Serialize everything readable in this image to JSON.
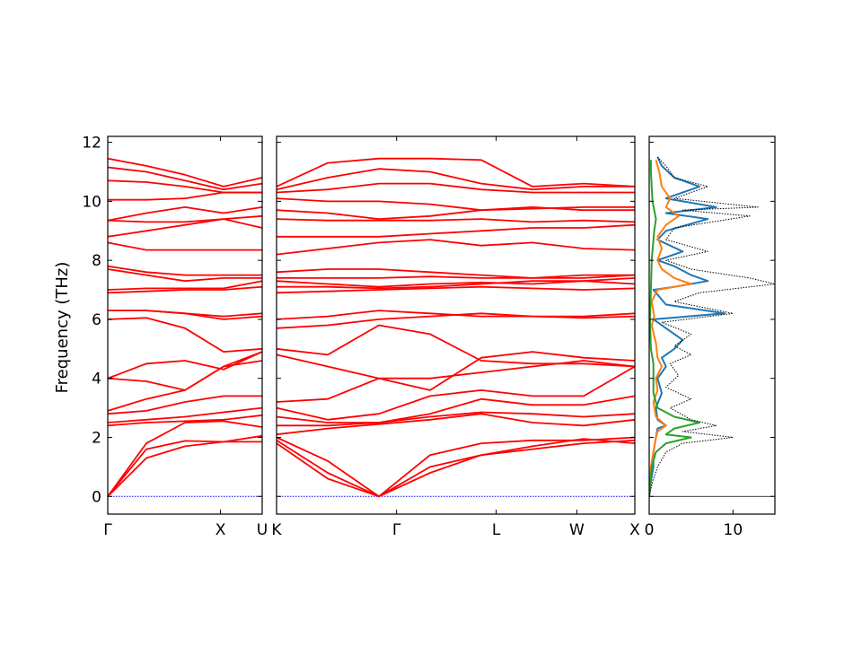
{
  "chart_data": {
    "type": "line",
    "ylabel": "Frequency (THz)",
    "ylim": [
      -0.6,
      12.2
    ],
    "yticks": [
      "0",
      "2",
      "4",
      "6",
      "8",
      "10",
      "12"
    ],
    "ytick_values": [
      0,
      2,
      4,
      6,
      8,
      10,
      12
    ],
    "band_color": "#ff0000",
    "zero_line_color": "#0000ff",
    "panels": [
      {
        "name": "Γ–X–U",
        "tick_labels": [
          "Γ",
          "X",
          "U"
        ],
        "tick_positions": [
          0,
          0.73,
          1.0
        ],
        "bands": [
          [
            0,
            1.3,
            1.7,
            1.85,
            1.85
          ],
          [
            0,
            1.6,
            1.88,
            1.85,
            2.05
          ],
          [
            0,
            1.8,
            2.5,
            2.55,
            2.35
          ],
          [
            2.4,
            2.5,
            2.55,
            2.6,
            2.75
          ],
          [
            2.5,
            2.6,
            2.7,
            2.85,
            3.0
          ],
          [
            2.8,
            2.9,
            3.2,
            3.4,
            3.4
          ],
          [
            2.9,
            3.3,
            3.6,
            4.4,
            4.6
          ],
          [
            4.0,
            3.9,
            3.6,
            4.4,
            4.9
          ],
          [
            4.0,
            4.5,
            4.6,
            4.3,
            4.9
          ],
          [
            6.0,
            6.05,
            5.7,
            4.9,
            5.0
          ],
          [
            6.3,
            6.3,
            6.2,
            6.0,
            6.1
          ],
          [
            6.3,
            6.3,
            6.2,
            6.1,
            6.2
          ],
          [
            6.9,
            6.95,
            7.0,
            7.0,
            7.1
          ],
          [
            7.0,
            7.05,
            7.05,
            7.05,
            7.3
          ],
          [
            7.7,
            7.5,
            7.3,
            7.4,
            7.4
          ],
          [
            7.8,
            7.6,
            7.5,
            7.5,
            7.5
          ],
          [
            8.6,
            8.35,
            8.35,
            8.35,
            8.35
          ],
          [
            8.8,
            9.0,
            9.2,
            9.4,
            9.1
          ],
          [
            9.35,
            9.3,
            9.3,
            9.4,
            9.5
          ],
          [
            9.35,
            9.6,
            9.8,
            9.6,
            9.8
          ],
          [
            10.05,
            10.05,
            10.1,
            10.3,
            10.3
          ],
          [
            10.7,
            10.65,
            10.5,
            10.3,
            10.3
          ],
          [
            11.15,
            11.0,
            10.7,
            10.4,
            10.6
          ],
          [
            11.45,
            11.2,
            10.9,
            10.5,
            10.8
          ]
        ]
      },
      {
        "name": "K–Γ–L–W–X",
        "tick_labels": [
          "K",
          "Γ",
          "L",
          "W",
          "X"
        ],
        "tick_positions": [
          0,
          0.335,
          0.613,
          0.838,
          1.0
        ],
        "bands": [
          [
            1.8,
            0.6,
            0,
            0.8,
            1.4,
            1.6,
            1.8,
            1.9
          ],
          [
            1.9,
            0.8,
            0,
            1.0,
            1.4,
            1.7,
            1.95,
            1.8
          ],
          [
            2.0,
            1.2,
            0,
            1.4,
            1.8,
            1.9,
            1.9,
            2.0
          ],
          [
            2.1,
            2.3,
            2.45,
            2.6,
            2.8,
            2.5,
            2.4,
            2.6
          ],
          [
            2.4,
            2.4,
            2.5,
            2.7,
            2.85,
            2.8,
            2.7,
            2.8
          ],
          [
            2.7,
            2.5,
            2.5,
            2.8,
            3.3,
            3.1,
            3.1,
            3.4
          ],
          [
            3.0,
            2.6,
            2.8,
            3.4,
            3.6,
            3.4,
            3.4,
            4.4
          ],
          [
            3.2,
            3.3,
            4.0,
            4.0,
            4.2,
            4.4,
            4.6,
            4.4
          ],
          [
            4.8,
            4.4,
            4.0,
            3.6,
            4.7,
            4.9,
            4.7,
            4.6
          ],
          [
            5.0,
            4.8,
            5.8,
            5.5,
            4.6,
            4.5,
            4.5,
            4.4
          ],
          [
            5.7,
            5.8,
            6.0,
            6.1,
            6.2,
            6.1,
            6.05,
            6.1
          ],
          [
            6.0,
            6.1,
            6.3,
            6.2,
            6.1,
            6.1,
            6.1,
            6.2
          ],
          [
            6.9,
            6.95,
            7.0,
            7.05,
            7.1,
            7.05,
            7.0,
            7.05
          ],
          [
            7.1,
            7.1,
            7.05,
            7.1,
            7.2,
            7.3,
            7.3,
            7.2
          ],
          [
            7.3,
            7.2,
            7.1,
            7.2,
            7.25,
            7.2,
            7.3,
            7.4
          ],
          [
            7.4,
            7.4,
            7.4,
            7.45,
            7.4,
            7.4,
            7.4,
            7.5
          ],
          [
            7.6,
            7.7,
            7.7,
            7.6,
            7.5,
            7.4,
            7.5,
            7.5
          ],
          [
            8.2,
            8.4,
            8.6,
            8.7,
            8.5,
            8.6,
            8.4,
            8.35
          ],
          [
            8.8,
            8.8,
            8.8,
            8.9,
            9.0,
            9.1,
            9.1,
            9.2
          ],
          [
            9.4,
            9.35,
            9.35,
            9.35,
            9.4,
            9.3,
            9.35,
            9.3
          ],
          [
            9.7,
            9.6,
            9.4,
            9.5,
            9.7,
            9.75,
            9.8,
            9.8
          ],
          [
            10.1,
            10.0,
            10.0,
            9.9,
            9.7,
            9.8,
            9.7,
            9.7
          ],
          [
            10.3,
            10.4,
            10.6,
            10.6,
            10.4,
            10.3,
            10.3,
            10.3
          ],
          [
            10.4,
            10.8,
            11.1,
            11.0,
            10.6,
            10.4,
            10.5,
            10.5
          ],
          [
            10.5,
            11.3,
            11.45,
            11.45,
            11.4,
            10.5,
            10.6,
            10.5
          ]
        ]
      }
    ],
    "dos": {
      "xlim": [
        0,
        15
      ],
      "xticks": [
        "0",
        "10"
      ],
      "xtick_values": [
        0,
        10
      ],
      "series": [
        {
          "color": "#1f77b4",
          "points": [
            [
              0,
              0
            ],
            [
              0.2,
              0.5
            ],
            [
              0.5,
              1
            ],
            [
              0.5,
              1.5
            ],
            [
              0.8,
              2
            ],
            [
              1,
              2.3
            ],
            [
              2,
              2.4
            ],
            [
              1,
              2.6
            ],
            [
              0.8,
              3
            ],
            [
              1.5,
              3.5
            ],
            [
              1,
              4
            ],
            [
              2,
              4.4
            ],
            [
              1.5,
              4.7
            ],
            [
              3,
              5
            ],
            [
              4,
              5.3
            ],
            [
              2,
              5.7
            ],
            [
              0.5,
              6
            ],
            [
              9,
              6.2
            ],
            [
              2,
              6.5
            ],
            [
              0.5,
              7
            ],
            [
              3,
              7.1
            ],
            [
              7,
              7.3
            ],
            [
              5,
              7.5
            ],
            [
              3,
              7.8
            ],
            [
              1,
              8
            ],
            [
              4,
              8.3
            ],
            [
              1,
              8.7
            ],
            [
              2,
              9
            ],
            [
              7,
              9.4
            ],
            [
              2,
              9.6
            ],
            [
              8,
              9.8
            ],
            [
              2,
              10.1
            ],
            [
              6,
              10.5
            ],
            [
              3,
              10.8
            ],
            [
              1.5,
              11.2
            ],
            [
              1,
              11.5
            ]
          ]
        },
        {
          "color": "#ff7f0e",
          "points": [
            [
              0,
              0
            ],
            [
              0.2,
              1
            ],
            [
              0.5,
              1.5
            ],
            [
              0.8,
              2
            ],
            [
              1,
              2.2
            ],
            [
              2,
              2.4
            ],
            [
              0.8,
              2.7
            ],
            [
              0.5,
              3.2
            ],
            [
              1,
              3.6
            ],
            [
              0.8,
              4
            ],
            [
              1.5,
              4.4
            ],
            [
              1,
              4.7
            ],
            [
              0.8,
              5.2
            ],
            [
              0.3,
              5.8
            ],
            [
              0.6,
              6.1
            ],
            [
              0.3,
              6.6
            ],
            [
              1,
              7
            ],
            [
              5,
              7.2
            ],
            [
              3,
              7.4
            ],
            [
              1.5,
              7.7
            ],
            [
              1,
              8
            ],
            [
              1.5,
              8.4
            ],
            [
              1,
              8.8
            ],
            [
              2,
              9.2
            ],
            [
              3.5,
              9.5
            ],
            [
              2,
              9.8
            ],
            [
              2.5,
              10.1
            ],
            [
              1.5,
              10.5
            ],
            [
              1.2,
              11
            ],
            [
              0.8,
              11.4
            ]
          ]
        },
        {
          "color": "#2ca02c",
          "points": [
            [
              0,
              0
            ],
            [
              0.3,
              1
            ],
            [
              0.8,
              1.5
            ],
            [
              2,
              1.8
            ],
            [
              5,
              2.0
            ],
            [
              2,
              2.1
            ],
            [
              3,
              2.3
            ],
            [
              6,
              2.5
            ],
            [
              3,
              2.7
            ],
            [
              1,
              3
            ],
            [
              0.5,
              3.5
            ],
            [
              0.5,
              4.5
            ],
            [
              0.2,
              5
            ],
            [
              0.1,
              6
            ],
            [
              0.2,
              7
            ],
            [
              0.3,
              8
            ],
            [
              0.6,
              9
            ],
            [
              0.8,
              9.4
            ],
            [
              0.4,
              10
            ],
            [
              0.2,
              11
            ],
            [
              0.2,
              11.4
            ]
          ]
        },
        {
          "color": "#000000",
          "dotted": true,
          "points": [
            [
              0,
              0
            ],
            [
              0.4,
              0.5
            ],
            [
              1,
              1
            ],
            [
              2,
              1.5
            ],
            [
              4,
              1.8
            ],
            [
              10,
              2.0
            ],
            [
              4,
              2.2
            ],
            [
              8,
              2.4
            ],
            [
              5,
              2.6
            ],
            [
              2.5,
              3
            ],
            [
              5,
              3.3
            ],
            [
              2,
              3.7
            ],
            [
              3.5,
              4.1
            ],
            [
              2.5,
              4.5
            ],
            [
              5,
              4.8
            ],
            [
              3,
              5.1
            ],
            [
              5,
              5.5
            ],
            [
              1.5,
              5.9
            ],
            [
              10,
              6.2
            ],
            [
              3,
              6.6
            ],
            [
              6,
              6.9
            ],
            [
              15,
              7.2
            ],
            [
              12,
              7.4
            ],
            [
              5,
              7.7
            ],
            [
              2,
              8
            ],
            [
              7,
              8.3
            ],
            [
              2,
              8.7
            ],
            [
              3,
              9.1
            ],
            [
              12,
              9.5
            ],
            [
              4,
              9.7
            ],
            [
              13,
              9.8
            ],
            [
              3,
              10.1
            ],
            [
              7,
              10.5
            ],
            [
              3,
              10.8
            ],
            [
              2,
              11.2
            ],
            [
              1,
              11.5
            ]
          ]
        }
      ]
    }
  }
}
